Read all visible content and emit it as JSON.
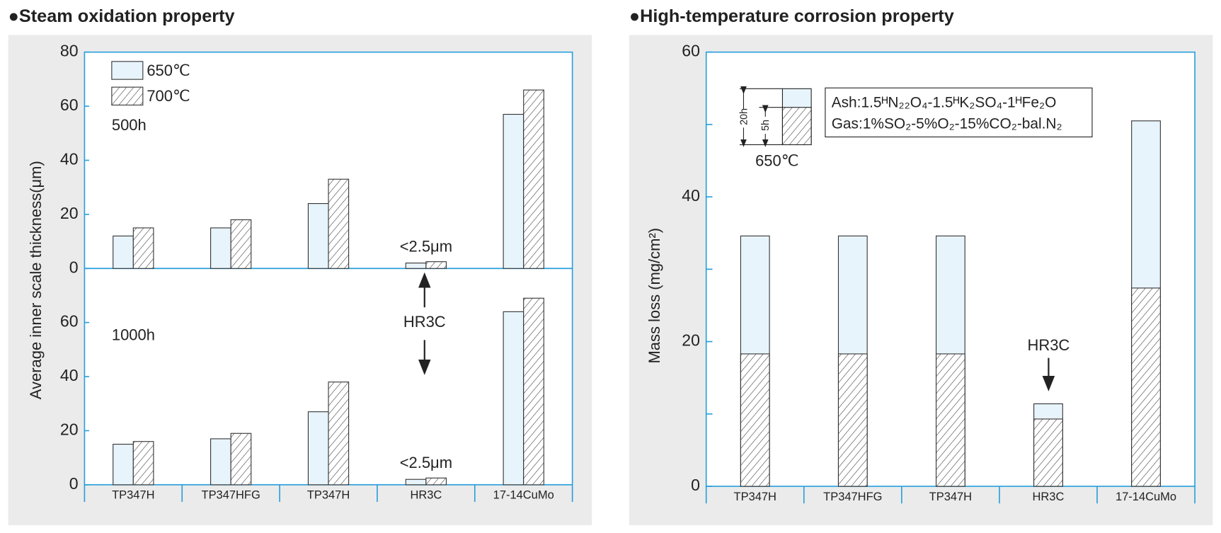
{
  "chart_data": [
    {
      "type": "bar",
      "title": "●Steam oxidation property",
      "y_label": "Average inner scale thickness(μm)",
      "categories": [
        "TP347H",
        "TP347HFG",
        "TP347H",
        "HR3C",
        "17-14CuMo"
      ],
      "series": [
        {
          "name": "650℃",
          "color": "#e8f4fc",
          "hatch": false
        },
        {
          "name": "700℃",
          "color": "#ffffff",
          "hatch": true
        }
      ],
      "ylim": [
        0,
        80
      ],
      "panels": [
        {
          "label": "500h",
          "yticks": [
            0,
            20,
            40,
            60,
            80
          ],
          "values": [
            [
              12,
              15,
              24,
              2,
              57
            ],
            [
              15,
              18,
              33,
              2.5,
              66
            ]
          ],
          "note": "<2.5μm"
        },
        {
          "label": "1000h",
          "yticks": [
            0,
            20,
            40,
            60
          ],
          "values": [
            [
              15,
              17,
              27,
              2,
              64
            ],
            [
              16,
              19,
              38,
              2.5,
              69
            ]
          ],
          "note": "<2.5μm"
        }
      ],
      "annotation": "HR3C"
    },
    {
      "type": "overlap-bar",
      "title": "●High-temperature corrosion property",
      "y_label": "Mass loss (mg/cm²)",
      "categories": [
        "TP347H",
        "TP347HFG",
        "TP347H",
        "HR3C",
        "17-14CuMo"
      ],
      "series": [
        {
          "name": "20h",
          "color": "#e8f4fc",
          "hatch": false,
          "values": [
            34.6,
            34.6,
            34.6,
            11.4,
            50.5
          ]
        },
        {
          "name": "5h",
          "color": "#ffffff",
          "hatch": true,
          "values": [
            18.3,
            18.3,
            18.3,
            9.3,
            27.4
          ]
        }
      ],
      "ylim": [
        0,
        60
      ],
      "yticks": [
        0,
        20,
        40,
        60
      ],
      "yminor": [
        10,
        30,
        50
      ],
      "legend_title": "650℃",
      "notes": [
        "Ash:1.5ᴴN₂₂O₄-1.5ᴴK₂SO₄-1ᴴFe₂O",
        "Gas:1%SO₂-5%O₂-15%CO₂-bal.N₂"
      ],
      "annotation": "HR3C"
    }
  ]
}
